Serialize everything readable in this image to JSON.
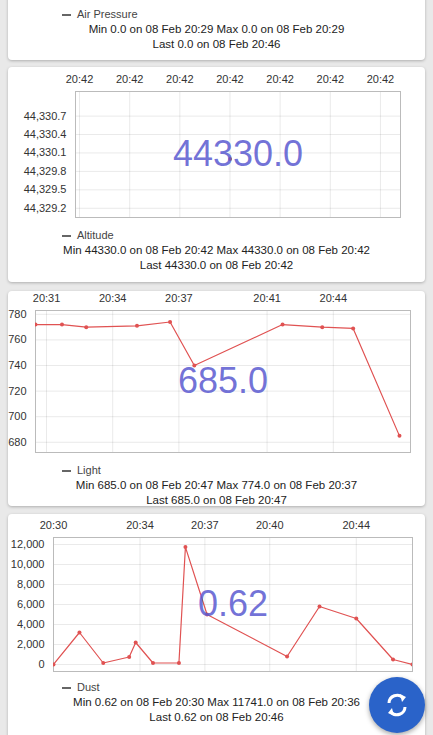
{
  "chart_data": [
    {
      "type": "line",
      "series": [
        {
          "name": "Air Pressure",
          "color": "#e05252"
        }
      ],
      "caption": [
        "Min  0.0 on 08 Feb 20:29   Max  0.0 on 08 Feb 20:29",
        "Last  0.0 on 08 Feb 20:46"
      ]
    },
    {
      "type": "line",
      "grid": true,
      "marker": "circle",
      "annotations": [
        "44330.0"
      ],
      "x": [
        3
      ],
      "series": [
        {
          "name": "Altitude",
          "color": "#e05252",
          "values": [
            44330.0
          ]
        }
      ],
      "xlim": [
        -0.08,
        6.4
      ],
      "xticks": [
        {
          "value": 0,
          "label": "20:42"
        },
        {
          "value": 1,
          "label": "20:42"
        },
        {
          "value": 2,
          "label": "20:42"
        },
        {
          "value": 3,
          "label": "20:42"
        },
        {
          "value": 4,
          "label": "20:42"
        },
        {
          "value": 5,
          "label": "20:42"
        },
        {
          "value": 6,
          "label": "20:42"
        }
      ],
      "ylim": [
        44329.05,
        44331.1
      ],
      "yticks": [
        {
          "value": 44329.2,
          "label": "44,329.2"
        },
        {
          "value": 44329.5,
          "label": "44,329.5"
        },
        {
          "value": 44329.8,
          "label": "44,329.8"
        },
        {
          "value": 44330.1,
          "label": "44,330.1"
        },
        {
          "value": 44330.4,
          "label": "44,330.4"
        },
        {
          "value": 44330.7,
          "label": "44,330.7"
        }
      ],
      "caption": [
        "Min  44330.0 on 08 Feb 20:42   Max  44330.0 on 08 Feb 20:42",
        "Last  44330.0 on 08 Feb 20:42"
      ]
    },
    {
      "type": "line",
      "grid": true,
      "marker": "circle",
      "annotations": [
        "685.0"
      ],
      "x": [
        30.5,
        31.7,
        32.8,
        35.1,
        36.6,
        37.7,
        41.7,
        43.5,
        44.9,
        47.0
      ],
      "series": [
        {
          "name": "Light",
          "color": "#e05252",
          "values": [
            772,
            772,
            770,
            771,
            774,
            740,
            772,
            770,
            769,
            685
          ]
        }
      ],
      "xlim": [
        30.5,
        47.5
      ],
      "xticks": [
        {
          "value": 31,
          "label": "20:31"
        },
        {
          "value": 34,
          "label": "20:34"
        },
        {
          "value": 37,
          "label": "20:37"
        },
        {
          "value": 41,
          "label": "20:41"
        },
        {
          "value": 44,
          "label": "20:44"
        }
      ],
      "ylim": [
        672,
        783
      ],
      "yticks": [
        680,
        700,
        720,
        740,
        760,
        780
      ],
      "caption": [
        "Min  685.0 on 08 Feb 20:47   Max  774.0 on 08 Feb 20:37",
        "Last  685.0 on 08 Feb 20:47"
      ]
    },
    {
      "type": "line",
      "grid": true,
      "marker": "circle",
      "annotations": [
        "0.62"
      ],
      "x": [
        30.0,
        31.2,
        32.3,
        33.5,
        33.8,
        34.6,
        35.8,
        36.1,
        37.1,
        40.8,
        42.3,
        44.0,
        45.7,
        46.6
      ],
      "series": [
        {
          "name": "Dust",
          "color": "#e05252",
          "values": [
            0.62,
            3200,
            150,
            750,
            2200,
            150,
            150,
            11741,
            5000,
            800,
            5800,
            4600,
            500,
            0.62
          ]
        }
      ],
      "xlim": [
        30.0,
        46.6
      ],
      "xticks": [
        {
          "value": 30,
          "label": "20:30"
        },
        {
          "value": 34,
          "label": "20:34"
        },
        {
          "value": 37,
          "label": "20:37"
        },
        {
          "value": 40,
          "label": "20:40"
        },
        {
          "value": 44,
          "label": "20:44"
        }
      ],
      "ylim": [
        -700,
        12700
      ],
      "yticks": [
        0,
        {
          "value": 2000,
          "label": "2,000"
        },
        {
          "value": 4000,
          "label": "4,000"
        },
        {
          "value": 6000,
          "label": "6,000"
        },
        {
          "value": 8000,
          "label": "8,000"
        },
        {
          "value": 10000,
          "label": "10,000"
        },
        {
          "value": 12000,
          "label": "12,000"
        }
      ],
      "caption": [
        "Min  0.62 on 08 Feb 20:30   Max  11741.0 on 08 Feb 20:36",
        "Last  0.62 on 08 Feb 20:46"
      ]
    }
  ]
}
